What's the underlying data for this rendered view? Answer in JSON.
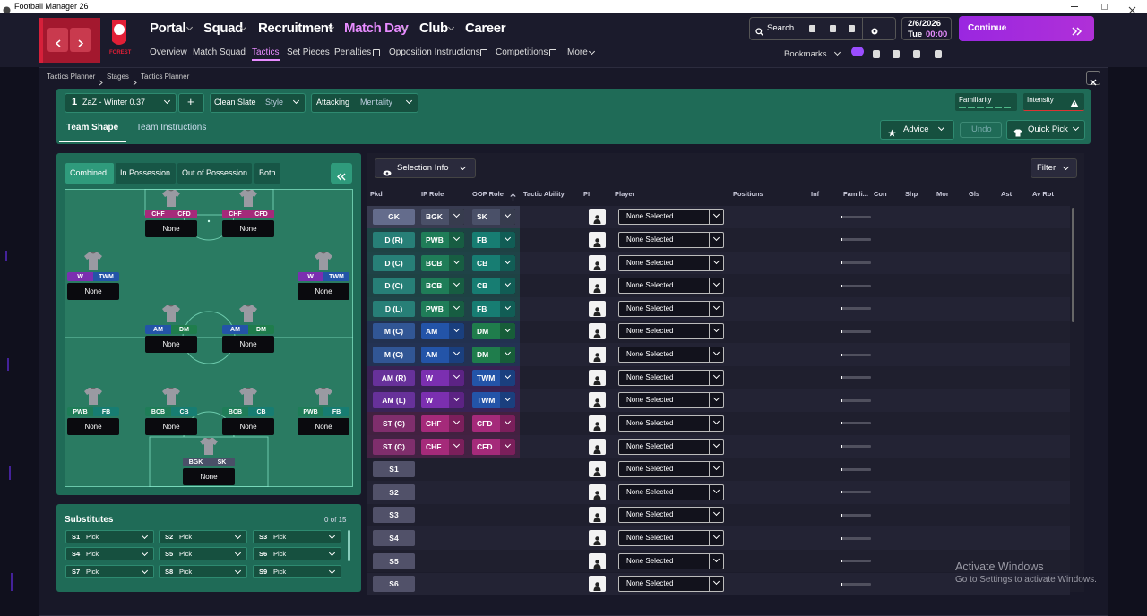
{
  "window_title": "Football Manager 26",
  "nav": {
    "crest": "FOREST",
    "main": [
      "Portal",
      "Squad",
      "Recruitment",
      "Match Day",
      "Club",
      "Career"
    ],
    "sub": [
      "Overview",
      "Match Squad",
      "Tactics",
      "Set Pieces",
      "Penalties",
      "Opposition Instructions",
      "Competitions",
      "More"
    ],
    "search": "Search",
    "bookmarks": "Bookmarks",
    "date": "2/6/2026",
    "day": "Tue",
    "time": "00:00",
    "continue": "Continue"
  },
  "breadcrumb": [
    "Tactics Planner",
    "Stages",
    "Tactics Planner"
  ],
  "toolbar": {
    "tactic_number": "1",
    "tactic_name": "ZaZ - Winter 0.37",
    "add": "+",
    "style_value": "Clean Slate",
    "style_label": "Style",
    "mentality_value": "Attacking",
    "mentality_label": "Mentality",
    "familiarity": "Familiarity",
    "intensity": "Intensity"
  },
  "tabs": [
    "Team Shape",
    "Team Instructions"
  ],
  "actions": {
    "advice": "Advice",
    "undo": "Undo",
    "quick_pick": "Quick Pick"
  },
  "pitch": {
    "modes": [
      "Combined",
      "In Possession",
      "Out of Possession",
      "Both"
    ],
    "players": [
      {
        "ip": "CHF",
        "oop": "CFD",
        "ip_color": "#a52a7a",
        "oop_color": "#a52a7a",
        "name": "None"
      },
      {
        "ip": "CHF",
        "oop": "CFD",
        "ip_color": "#a52a7a",
        "oop_color": "#a52a7a",
        "name": "None"
      },
      {
        "ip": "W",
        "oop": "TWM",
        "ip_color": "#7b2fb0",
        "oop_color": "#2354a8",
        "name": "None"
      },
      {
        "ip": "W",
        "oop": "TWM",
        "ip_color": "#7b2fb0",
        "oop_color": "#2354a8",
        "name": "None"
      },
      {
        "ip": "AM",
        "oop": "DM",
        "ip_color": "#2354a8",
        "oop_color": "#1f7d4c",
        "name": "None"
      },
      {
        "ip": "AM",
        "oop": "DM",
        "ip_color": "#2354a8",
        "oop_color": "#1f7d4c",
        "name": "None"
      },
      {
        "ip": "PWB",
        "oop": "FB",
        "ip_color": "#1f7d58",
        "oop_color": "#177d72",
        "name": "None"
      },
      {
        "ip": "BCB",
        "oop": "CB",
        "ip_color": "#1f7d58",
        "oop_color": "#177d72",
        "name": "None"
      },
      {
        "ip": "BCB",
        "oop": "CB",
        "ip_color": "#1f7d58",
        "oop_color": "#177d72",
        "name": "None"
      },
      {
        "ip": "PWB",
        "oop": "FB",
        "ip_color": "#1f7d58",
        "oop_color": "#177d72",
        "name": "None"
      },
      {
        "ip": "BGK",
        "oop": "SK",
        "ip_color": "#4a5068",
        "oop_color": "#4a5068",
        "name": "None"
      }
    ]
  },
  "substitutes": {
    "title": "Substitutes",
    "count": "0 of 15",
    "slots": [
      {
        "slot": "S1",
        "pick": "Pick"
      },
      {
        "slot": "S2",
        "pick": "Pick"
      },
      {
        "slot": "S3",
        "pick": "Pick"
      },
      {
        "slot": "S4",
        "pick": "Pick"
      },
      {
        "slot": "S5",
        "pick": "Pick"
      },
      {
        "slot": "S6",
        "pick": "Pick"
      },
      {
        "slot": "S7",
        "pick": "Pick"
      },
      {
        "slot": "S8",
        "pick": "Pick"
      },
      {
        "slot": "S9",
        "pick": "Pick"
      }
    ]
  },
  "table": {
    "selection_info": "Selection Info",
    "filter": "Filter",
    "columns": [
      "Pkd",
      "IP Role",
      "OOP Role",
      "Tactic Ability",
      "PI",
      "Player",
      "Positions",
      "Inf",
      "Famili...",
      "Con",
      "Shp",
      "Mor",
      "Gls",
      "Ast",
      "Av Rot"
    ],
    "rows": [
      {
        "pkd": "GK",
        "ip": "BGK",
        "oop": "SK",
        "color": "#4a5068",
        "ip_color": "#4a5068",
        "oop_color": "#4a5068",
        "player": "None Selected"
      },
      {
        "pkd": "D (R)",
        "ip": "PWB",
        "oop": "FB",
        "color": "#1d5e58",
        "ip_color": "#1f7d58",
        "oop_color": "#177d72",
        "player": "None Selected"
      },
      {
        "pkd": "D (C)",
        "ip": "BCB",
        "oop": "CB",
        "color": "#1d5e58",
        "ip_color": "#1f7d58",
        "oop_color": "#177d72",
        "player": "None Selected"
      },
      {
        "pkd": "D (C)",
        "ip": "BCB",
        "oop": "CB",
        "color": "#1d5e58",
        "ip_color": "#1f7d58",
        "oop_color": "#177d72",
        "player": "None Selected"
      },
      {
        "pkd": "D (L)",
        "ip": "PWB",
        "oop": "FB",
        "color": "#1d5e58",
        "ip_color": "#1f7d58",
        "oop_color": "#177d72",
        "player": "None Selected"
      },
      {
        "pkd": "M (C)",
        "ip": "AM",
        "oop": "DM",
        "color": "#24406e",
        "ip_color": "#2354a8",
        "oop_color": "#1f7d4c",
        "player": "None Selected"
      },
      {
        "pkd": "M (C)",
        "ip": "AM",
        "oop": "DM",
        "color": "#24406e",
        "ip_color": "#2354a8",
        "oop_color": "#1f7d4c",
        "player": "None Selected"
      },
      {
        "pkd": "AM (R)",
        "ip": "W",
        "oop": "TWM",
        "color": "#4c2472",
        "ip_color": "#7b2fb0",
        "oop_color": "#2354a8",
        "player": "None Selected"
      },
      {
        "pkd": "AM (L)",
        "ip": "W",
        "oop": "TWM",
        "color": "#4c2472",
        "ip_color": "#7b2fb0",
        "oop_color": "#2354a8",
        "player": "None Selected"
      },
      {
        "pkd": "ST (C)",
        "ip": "CHF",
        "oop": "CFD",
        "color": "#5e2250",
        "ip_color": "#a52a7a",
        "oop_color": "#a52a7a",
        "player": "None Selected"
      },
      {
        "pkd": "ST (C)",
        "ip": "CHF",
        "oop": "CFD",
        "color": "#5e2250",
        "ip_color": "#a52a7a",
        "oop_color": "#a52a7a",
        "player": "None Selected"
      },
      {
        "pkd": "S1",
        "player": "None Selected"
      },
      {
        "pkd": "S2",
        "player": "None Selected"
      },
      {
        "pkd": "S3",
        "player": "None Selected"
      },
      {
        "pkd": "S4",
        "player": "None Selected"
      },
      {
        "pkd": "S5",
        "player": "None Selected"
      },
      {
        "pkd": "S6",
        "player": "None Selected"
      }
    ]
  },
  "watermark": {
    "title": "Activate Windows",
    "text": "Go to Settings to activate Windows."
  }
}
